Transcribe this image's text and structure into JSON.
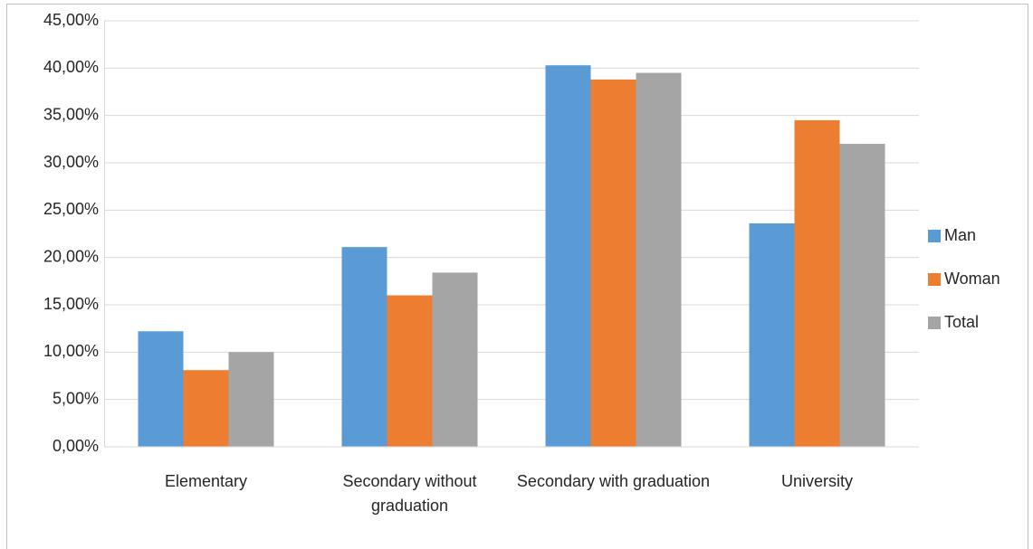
{
  "chart_data": {
    "type": "bar",
    "categories": [
      "Elementary",
      "Secondary without graduation",
      "Secondary with graduation",
      "University"
    ],
    "series": [
      {
        "name": "Man",
        "color": "#5b9bd5",
        "values": [
          12.2,
          21.1,
          40.3,
          23.6
        ]
      },
      {
        "name": "Woman",
        "color": "#ed7d31",
        "values": [
          8.1,
          16.0,
          38.8,
          34.5
        ]
      },
      {
        "name": "Total",
        "color": "#a5a5a5",
        "values": [
          10.0,
          18.4,
          39.5,
          32.0
        ]
      }
    ],
    "ylim": [
      0,
      45
    ],
    "yticks": [
      {
        "value": 0,
        "label": "0,00%"
      },
      {
        "value": 5,
        "label": "5,00%"
      },
      {
        "value": 10,
        "label": "10,00%"
      },
      {
        "value": 15,
        "label": "15,00%"
      },
      {
        "value": 20,
        "label": "20,00%"
      },
      {
        "value": 25,
        "label": "25,00%"
      },
      {
        "value": 30,
        "label": "30,00%"
      },
      {
        "value": 35,
        "label": "35,00%"
      },
      {
        "value": 40,
        "label": "40,00%"
      },
      {
        "value": 45,
        "label": "45,00%"
      }
    ],
    "grid": true,
    "legend": "right"
  }
}
